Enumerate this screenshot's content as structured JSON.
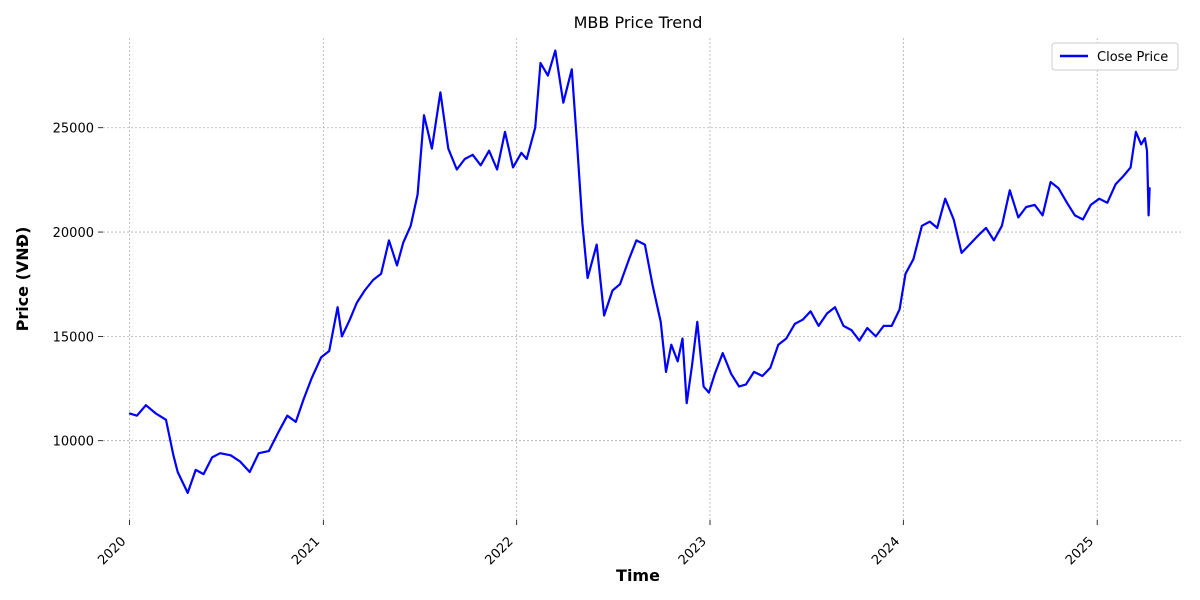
{
  "chart_data": {
    "type": "line",
    "title": "MBB Price Trend",
    "xlabel": "Time",
    "ylabel": "Price (VNĐ)",
    "x_ticks": [
      "2020",
      "2021",
      "2022",
      "2023",
      "2024",
      "2025"
    ],
    "y_ticks": [
      10000,
      15000,
      20000,
      25000
    ],
    "xlim": [
      "2019-11-12",
      "2025-06-12"
    ],
    "ylim": [
      6200,
      29300
    ],
    "grid": true,
    "legend_position": "top-right",
    "colors": {
      "series": "#0000ff"
    },
    "series": [
      {
        "name": "Close Price",
        "x": [
          "2020-01-02",
          "2020-01-15",
          "2020-02-01",
          "2020-02-20",
          "2020-03-10",
          "2020-03-24",
          "2020-04-01",
          "2020-04-20",
          "2020-05-05",
          "2020-05-20",
          "2020-06-05",
          "2020-06-20",
          "2020-07-10",
          "2020-07-28",
          "2020-08-15",
          "2020-09-01",
          "2020-09-20",
          "2020-10-10",
          "2020-10-25",
          "2020-11-10",
          "2020-11-25",
          "2020-12-10",
          "2020-12-28",
          "2021-01-12",
          "2021-01-28",
          "2021-02-05",
          "2021-02-20",
          "2021-03-05",
          "2021-03-20",
          "2021-04-05",
          "2021-04-20",
          "2021-05-05",
          "2021-05-20",
          "2021-06-01",
          "2021-06-15",
          "2021-06-28",
          "2021-07-10",
          "2021-07-25",
          "2021-08-10",
          "2021-08-25",
          "2021-09-10",
          "2021-09-25",
          "2021-10-10",
          "2021-10-25",
          "2021-11-10",
          "2021-11-25",
          "2021-12-10",
          "2021-12-25",
          "2022-01-10",
          "2022-01-20",
          "2022-02-05",
          "2022-02-15",
          "2022-03-01",
          "2022-03-15",
          "2022-03-30",
          "2022-04-15",
          "2022-04-25",
          "2022-05-05",
          "2022-05-15",
          "2022-06-01",
          "2022-06-15",
          "2022-07-01",
          "2022-07-15",
          "2022-08-01",
          "2022-08-15",
          "2022-08-31",
          "2022-09-15",
          "2022-09-30",
          "2022-10-10",
          "2022-10-20",
          "2022-11-01",
          "2022-11-10",
          "2022-11-18",
          "2022-11-28",
          "2022-12-08",
          "2022-12-20",
          "2022-12-30",
          "2023-01-10",
          "2023-01-25",
          "2023-02-10",
          "2023-02-25",
          "2023-03-10",
          "2023-03-25",
          "2023-04-10",
          "2023-04-25",
          "2023-05-10",
          "2023-05-25",
          "2023-06-10",
          "2023-06-25",
          "2023-07-10",
          "2023-07-25",
          "2023-08-10",
          "2023-08-25",
          "2023-09-10",
          "2023-09-25",
          "2023-10-10",
          "2023-10-25",
          "2023-11-10",
          "2023-11-25",
          "2023-12-10",
          "2023-12-25",
          "2024-01-05",
          "2024-01-20",
          "2024-02-05",
          "2024-02-20",
          "2024-03-05",
          "2024-03-20",
          "2024-04-05",
          "2024-04-20",
          "2024-05-05",
          "2024-05-20",
          "2024-06-05",
          "2024-06-20",
          "2024-07-05",
          "2024-07-20",
          "2024-08-05",
          "2024-08-20",
          "2024-09-05",
          "2024-09-20",
          "2024-10-05",
          "2024-10-20",
          "2024-11-05",
          "2024-11-20",
          "2024-12-05",
          "2024-12-20",
          "2025-01-05",
          "2025-01-20",
          "2025-02-05",
          "2025-02-20",
          "2025-03-05",
          "2025-03-15",
          "2025-03-25",
          "2025-04-01",
          "2025-04-05",
          "2025-04-08",
          "2025-04-10"
        ],
        "values": [
          11300,
          11200,
          11700,
          11300,
          11000,
          9300,
          8500,
          7500,
          8600,
          8400,
          9200,
          9400,
          9300,
          9000,
          8500,
          9400,
          9500,
          10500,
          11200,
          10900,
          12000,
          13000,
          14000,
          14300,
          16400,
          15000,
          15800,
          16600,
          17200,
          17700,
          18000,
          19600,
          18400,
          19500,
          20300,
          21800,
          25600,
          24000,
          26700,
          24000,
          23000,
          23500,
          23700,
          23200,
          23900,
          23000,
          24800,
          23100,
          23800,
          23500,
          25000,
          28100,
          27500,
          28700,
          26200,
          27800,
          24200,
          20400,
          17800,
          19400,
          16000,
          17200,
          17500,
          18700,
          19600,
          19400,
          17400,
          15700,
          13300,
          14600,
          13800,
          14900,
          11800,
          13600,
          15700,
          12600,
          12300,
          13200,
          14200,
          13200,
          12600,
          12700,
          13300,
          13100,
          13500,
          14600,
          14900,
          15600,
          15800,
          16200,
          15500,
          16100,
          16400,
          15500,
          15300,
          14800,
          15400,
          15000,
          15500,
          15500,
          16300,
          18000,
          18700,
          20300,
          20500,
          20200,
          21600,
          20600,
          19000,
          19400,
          19800,
          20200,
          19600,
          20300,
          22000,
          20700,
          21200,
          21300,
          20800,
          22400,
          22100,
          21400,
          20800,
          20600,
          21300,
          21600,
          21400,
          22300,
          22700,
          23100,
          24800,
          24200,
          24500,
          23900,
          20800,
          22100
        ]
      }
    ]
  }
}
